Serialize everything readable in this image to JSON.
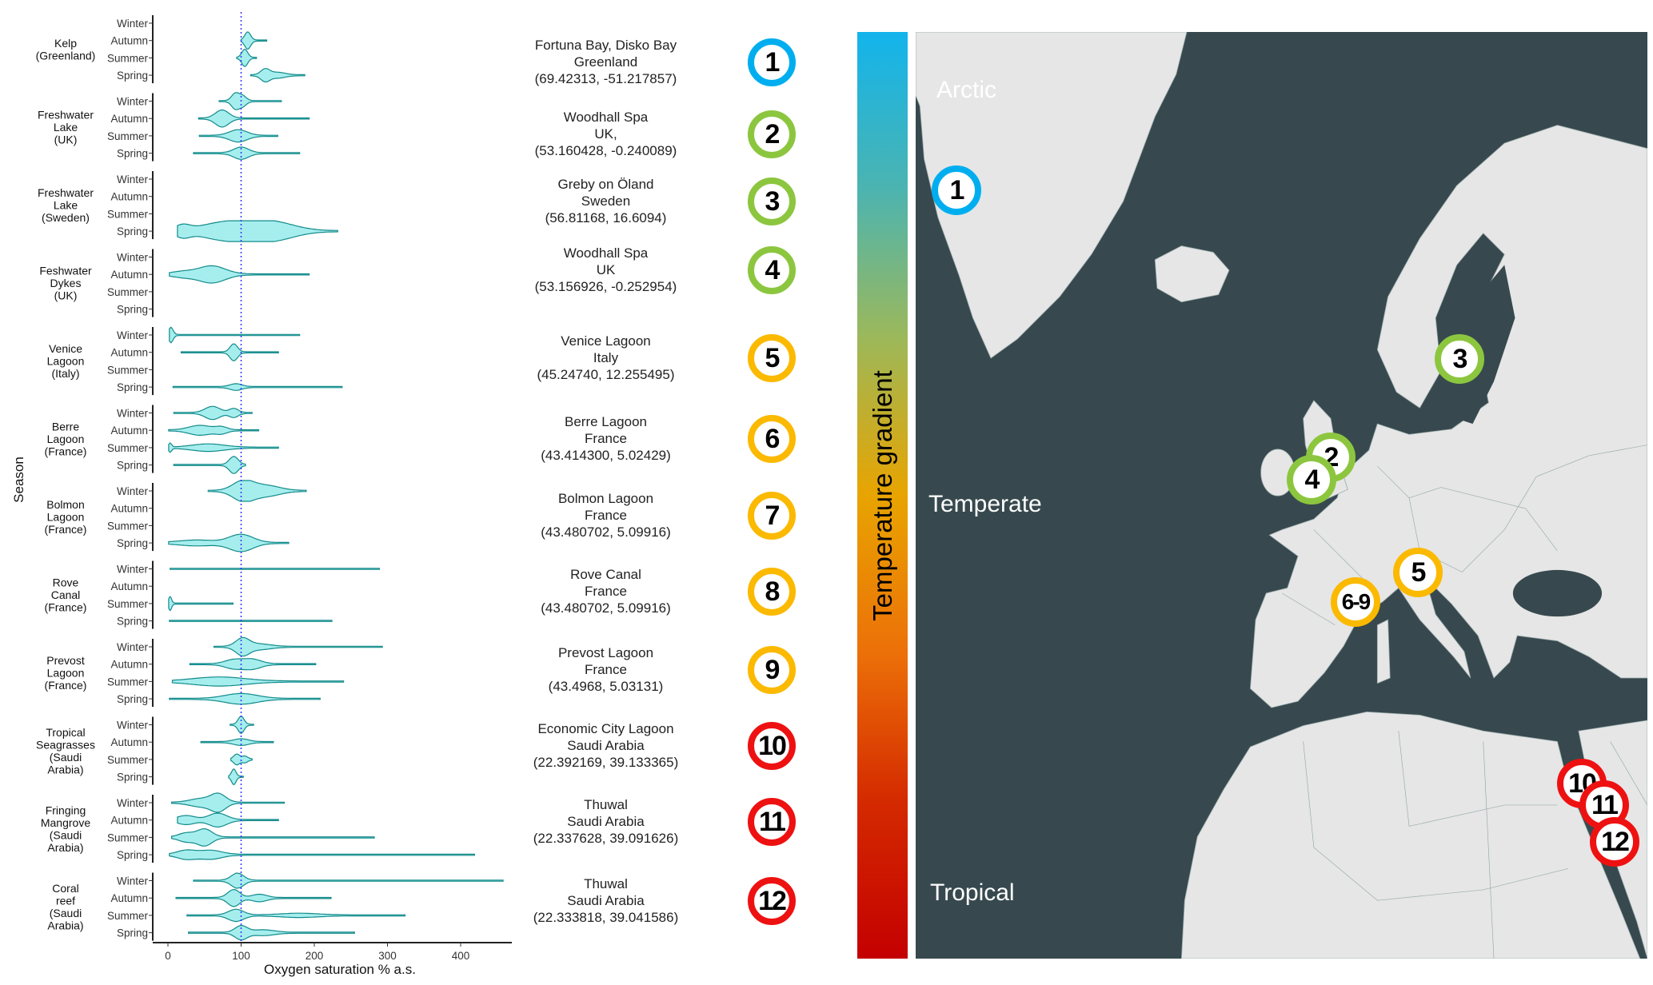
{
  "chart_data": {
    "type": "violin",
    "orientation": "horizontal",
    "xlabel": "Oxygen saturation % a.s.",
    "ylabel": "Season",
    "xlim": [
      -15,
      480
    ],
    "xticks": [
      0,
      100,
      200,
      300,
      400
    ],
    "reference_line": {
      "x": 100,
      "style": "dotted",
      "color": "#3333ff"
    },
    "fill_color": "#a6eeee",
    "line_color": "#138a8a",
    "seasons": [
      "Winter",
      "Autumn",
      "Summer",
      "Spring"
    ],
    "groups": [
      {
        "label": [
          "Kelp",
          "(Greenland)"
        ],
        "violins": [
          null,
          {
            "range": [
              100,
              135
            ],
            "peaks": [
              [
                109,
                1,
                4
              ]
            ]
          },
          {
            "range": [
              94,
              121
            ],
            "peaks": [
              [
                105,
                1,
                4
              ]
            ]
          },
          {
            "range": [
              113,
              187
            ],
            "peaks": [
              [
                133,
                0.7,
                6
              ],
              [
                150,
                0.3,
                10
              ]
            ]
          }
        ]
      },
      {
        "label": [
          "Freshwater",
          "Lake",
          "(UK)"
        ],
        "violins": [
          {
            "range": [
              70,
              155
            ],
            "peaks": [
              [
                92,
                0.9,
                5
              ],
              [
                102,
                0.6,
                5
              ]
            ]
          },
          {
            "range": [
              42,
              193
            ],
            "peaks": [
              [
                74,
                1,
                9
              ]
            ]
          },
          {
            "range": [
              43,
              150
            ],
            "peaks": [
              [
                96,
                0.7,
                12
              ]
            ]
          },
          {
            "range": [
              35,
              180
            ],
            "peaks": [
              [
                100,
                0.7,
                10
              ]
            ]
          }
        ]
      },
      {
        "label": [
          "Freshwater",
          "Lake",
          "(Sweden)"
        ],
        "violins": [
          null,
          null,
          null,
          {
            "range": [
              13,
              232
            ],
            "peaks": [
              [
                83,
                1.1,
                35
              ],
              [
                143,
                1,
                30
              ],
              [
                20,
                0.6,
                10
              ]
            ]
          }
        ]
      },
      {
        "label": [
          "Feshwater",
          "Dykes",
          "(UK)"
        ],
        "violins": [
          null,
          {
            "range": [
              2,
              193
            ],
            "peaks": [
              [
                60,
                1,
                18
              ],
              [
                20,
                0.3,
                15
              ]
            ]
          },
          null,
          null
        ]
      },
      {
        "label": [
          "Venice",
          "Lagoon",
          "(Italy)"
        ],
        "violins": [
          {
            "range": [
              2,
              180
            ],
            "peaks": [
              [
                4,
                0.9,
                3
              ]
            ]
          },
          {
            "range": [
              18,
              151
            ],
            "peaks": [
              [
                90,
                1,
                5
              ]
            ]
          },
          null,
          {
            "range": [
              7,
              238
            ],
            "peaks": [
              [
                93,
                0.35,
                8
              ]
            ]
          }
        ]
      },
      {
        "label": [
          "Berre",
          "Lagoon",
          "(France)"
        ],
        "violins": [
          {
            "range": [
              8,
              115
            ],
            "peaks": [
              [
                61,
                0.75,
                10
              ],
              [
                90,
                0.5,
                6
              ]
            ]
          },
          {
            "range": [
              1,
              124
            ],
            "peaks": [
              [
                44,
                0.55,
                15
              ],
              [
                73,
                0.35,
                8
              ]
            ]
          },
          {
            "range": [
              1,
              151
            ],
            "peaks": [
              [
                3,
                0.5,
                2
              ],
              [
                55,
                0.4,
                22
              ]
            ]
          },
          {
            "range": [
              8,
              106
            ],
            "peaks": [
              [
                90,
                1,
                6
              ]
            ]
          }
        ]
      },
      {
        "label": [
          "Bolmon",
          "Lagoon",
          "(France)"
        ],
        "violins": [
          {
            "range": [
              55,
              189
            ],
            "peaks": [
              [
                103,
                1.2,
                14
              ],
              [
                135,
                0.6,
                18
              ]
            ]
          },
          null,
          null,
          {
            "range": [
              1,
              165
            ],
            "peaks": [
              [
                100,
                1,
                16
              ],
              [
                40,
                0.3,
                25
              ]
            ]
          }
        ]
      },
      {
        "label": [
          "Rove",
          "Canal",
          "(France)"
        ],
        "violins": [
          {
            "range": [
              3,
              289
            ],
            "peaks": []
          },
          null,
          {
            "range": [
              1,
              89
            ],
            "peaks": [
              [
                3,
                0.8,
                2
              ]
            ]
          },
          {
            "range": [
              2,
              224
            ],
            "peaks": []
          }
        ]
      },
      {
        "label": [
          "Prevost",
          "Lagoon",
          "(France)"
        ],
        "violins": [
          {
            "range": [
              63,
              293
            ],
            "peaks": [
              [
                102,
                1,
                9
              ],
              [
                125,
                0.3,
                15
              ]
            ]
          },
          {
            "range": [
              30,
              202
            ],
            "peaks": [
              [
                90,
                0.5,
                12
              ],
              [
                115,
                0.55,
                12
              ]
            ]
          },
          {
            "range": [
              6,
              240
            ],
            "peaks": [
              [
                70,
                0.5,
                35
              ]
            ]
          },
          {
            "range": [
              2,
              208
            ],
            "peaks": [
              [
                100,
                0.6,
                22
              ]
            ]
          }
        ]
      },
      {
        "label": [
          "Tropical",
          "Seagrasses",
          "(Saudi",
          "Arabia)"
        ],
        "violins": [
          {
            "range": [
              85,
              117
            ],
            "peaks": [
              [
                100,
                1,
                4
              ]
            ]
          },
          {
            "range": [
              45,
              144
            ],
            "peaks": [
              [
                100,
                0.35,
                10
              ]
            ]
          },
          {
            "range": [
              86,
              115
            ],
            "peaks": [
              [
                94,
                0.6,
                4
              ],
              [
                105,
                0.35,
                4
              ]
            ]
          },
          {
            "range": [
              83,
              103
            ],
            "peaks": [
              [
                90,
                0.9,
                3
              ]
            ]
          }
        ]
      },
      {
        "label": [
          "Fringing",
          "Mangrove",
          "(Saudi",
          "Arabia)"
        ],
        "violins": [
          {
            "range": [
              5,
              159
            ],
            "peaks": [
              [
                69,
                1,
                10
              ],
              [
                45,
                0.45,
                15
              ]
            ]
          },
          {
            "range": [
              13,
              151
            ],
            "peaks": [
              [
                68,
                0.8,
                12
              ],
              [
                25,
                0.5,
                12
              ]
            ]
          },
          {
            "range": [
              5,
              282
            ],
            "peaks": [
              [
                50,
                1,
                10
              ],
              [
                25,
                0.5,
                10
              ]
            ]
          },
          {
            "range": [
              2,
              419
            ],
            "peaks": [
              [
                25,
                0.5,
                12
              ],
              [
                58,
                0.5,
                15
              ]
            ]
          }
        ]
      },
      {
        "label": [
          "Coral",
          "reef",
          "(Saudi",
          "Arabia)"
        ],
        "violins": [
          {
            "range": [
              35,
              458
            ],
            "peaks": [
              [
                95,
                0.9,
                8
              ]
            ]
          },
          {
            "range": [
              11,
              223
            ],
            "peaks": [
              [
                90,
                1,
                8
              ],
              [
                125,
                0.4,
                10
              ]
            ]
          },
          {
            "range": [
              26,
              324
            ],
            "peaks": [
              [
                93,
                0.7,
                10
              ],
              [
                180,
                0.2,
                25
              ]
            ]
          },
          {
            "range": [
              28,
              255
            ],
            "peaks": [
              [
                100,
                0.8,
                8
              ],
              [
                130,
                0.3,
                15
              ]
            ]
          }
        ]
      }
    ]
  },
  "sites": [
    {
      "number": "1",
      "name": "Fortuna Bay, Disko Bay",
      "country": "Greenland",
      "coords": "(69.42313, -51.217857)",
      "color": "#00aeef"
    },
    {
      "number": "2",
      "name": "Woodhall Spa",
      "country": "UK,",
      "coords": "(53.160428, -0.240089)",
      "color": "#8cc63f"
    },
    {
      "number": "3",
      "name": "Greby on Öland",
      "country": "Sweden",
      "coords": "(56.81168, 16.6094)",
      "color": "#8cc63f"
    },
    {
      "number": "4",
      "name": "Woodhall Spa",
      "country": "UK",
      "coords": "(53.156926, -0.252954)",
      "color": "#8cc63f"
    },
    {
      "number": "5",
      "name": "Venice Lagoon",
      "country": "Italy",
      "coords": "(45.24740, 12.255495)",
      "color": "#fbb900"
    },
    {
      "number": "6",
      "name": "Berre Lagoon",
      "country": "France",
      "coords": "(43.414300, 5.02429)",
      "color": "#fbb900"
    },
    {
      "number": "7",
      "name": "Bolmon Lagoon",
      "country": "France",
      "coords": "(43.480702, 5.09916)",
      "color": "#fbb900"
    },
    {
      "number": "8",
      "name": "Rove Canal",
      "country": "France",
      "coords": "(43.480702, 5.09916)",
      "color": "#fbb900"
    },
    {
      "number": "9",
      "name": "Prevost Lagoon",
      "country": "France",
      "coords": "(43.4968, 5.03131)",
      "color": "#fbb900"
    },
    {
      "number": "10",
      "name": "Economic City Lagoon",
      "country": "Saudi Arabia",
      "coords": "(22.392169, 39.133365)",
      "color": "#ee1111"
    },
    {
      "number": "11",
      "name": "Thuwal",
      "country": "Saudi Arabia",
      "coords": "(22.337628, 39.091626)",
      "color": "#ee1111"
    },
    {
      "number": "12",
      "name": "Thuwal",
      "country": "Saudi Arabia",
      "coords": "(22.333818, 39.041586)",
      "color": "#ee1111"
    }
  ],
  "colorbar": {
    "label": "Temperature gradient",
    "colors": [
      "#12b4ec",
      "#4cb4b0",
      "#9cb85a",
      "#e8a400",
      "#ec7008",
      "#d42a00",
      "#c40000"
    ]
  },
  "map": {
    "water_color": "#37494e",
    "land_color": "#e6e6e6",
    "zone_labels": {
      "arctic": "Arctic",
      "temperate": "Temperate",
      "tropical": "Tropical"
    },
    "markers": [
      {
        "label": "1",
        "color": "#00aeef"
      },
      {
        "label": "2",
        "color": "#8cc63f"
      },
      {
        "label": "3",
        "color": "#8cc63f"
      },
      {
        "label": "4",
        "color": "#8cc63f"
      },
      {
        "label": "5",
        "color": "#fbb900"
      },
      {
        "label": "6-9",
        "color": "#fbb900"
      },
      {
        "label": "10",
        "color": "#ee1111"
      },
      {
        "label": "11",
        "color": "#ee1111"
      },
      {
        "label": "12",
        "color": "#ee1111"
      }
    ]
  }
}
